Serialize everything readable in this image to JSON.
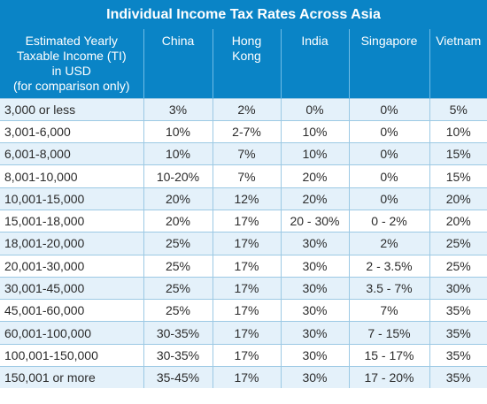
{
  "title": "Individual Income Tax Rates Across Asia",
  "headers": [
    [
      "Estimated Yearly",
      "Taxable Income (TI)",
      "in USD",
      "(for comparison only)"
    ],
    [
      "China"
    ],
    [
      "Hong",
      "Kong"
    ],
    [
      "India"
    ],
    [
      "Singapore"
    ],
    [
      "Vietnam"
    ]
  ],
  "rows": [
    [
      "3,000 or less",
      "3%",
      "2%",
      "0%",
      "0%",
      "5%"
    ],
    [
      "3,001-6,000",
      "10%",
      "2-7%",
      "10%",
      "0%",
      "10%"
    ],
    [
      "6,001-8,000",
      "10%",
      "7%",
      "10%",
      "0%",
      "15%"
    ],
    [
      "8,001-10,000",
      "10-20%",
      "7%",
      "20%",
      "0%",
      "15%"
    ],
    [
      "10,001-15,000",
      "20%",
      "12%",
      "20%",
      "0%",
      "20%"
    ],
    [
      "15,001-18,000",
      "20%",
      "17%",
      "20 - 30%",
      "0 - 2%",
      "20%"
    ],
    [
      "18,001-20,000",
      "25%",
      "17%",
      "30%",
      "2%",
      "25%"
    ],
    [
      "20,001-30,000",
      "25%",
      "17%",
      "30%",
      "2 - 3.5%",
      "25%"
    ],
    [
      "30,001-45,000",
      "25%",
      "17%",
      "30%",
      "3.5 - 7%",
      "30%"
    ],
    [
      "45,001-60,000",
      "25%",
      "17%",
      "30%",
      "7%",
      "35%"
    ],
    [
      "60,001-100,000",
      "30-35%",
      "17%",
      "30%",
      "7 - 15%",
      "35%"
    ],
    [
      "100,001-150,000",
      "30-35%",
      "17%",
      "30%",
      "15 - 17%",
      "35%"
    ],
    [
      "150,001 or more",
      "35-45%",
      "17%",
      "30%",
      "17 - 20%",
      "35%"
    ]
  ]
}
